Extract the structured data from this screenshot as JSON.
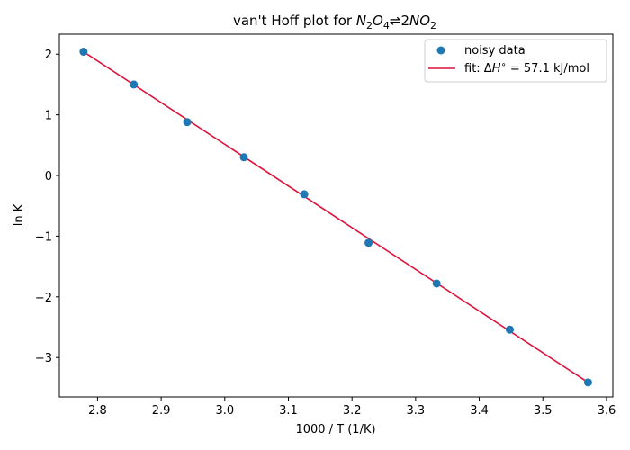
{
  "colors": {
    "scatter": "#1f77b4",
    "fit_line": "#dc143c",
    "axis": "#000000",
    "legend_border": "#cccccc"
  },
  "chart_data": {
    "type": "scatter",
    "title": "van't Hoff plot for N₂O₄ ⇌ 2NO₂",
    "title_parts": {
      "prefix": "van't Hoff plot for ",
      "species1": "N",
      "sub1": "2",
      "mid1": "O",
      "sub2": "4",
      "arrow": "⇌",
      "coef": "2",
      "species2": "NO",
      "sub3": "2"
    },
    "xlabel": "1000 / T (1/K)",
    "ylabel": "ln K",
    "xlim": [
      2.74,
      3.61
    ],
    "ylim": [
      -3.65,
      2.33
    ],
    "xticks": [
      2.8,
      2.9,
      3.0,
      3.1,
      3.2,
      3.3,
      3.4,
      3.5,
      3.6
    ],
    "xtick_labels": [
      "2.8",
      "2.9",
      "3.0",
      "3.1",
      "3.2",
      "3.3",
      "3.4",
      "3.5",
      "3.6"
    ],
    "yticks": [
      2,
      1,
      0,
      -1,
      -2,
      -3
    ],
    "ytick_labels": [
      "2",
      "1",
      "0",
      "−1",
      "−2",
      "−3"
    ],
    "grid": false,
    "legend_position": "top-right",
    "series": [
      {
        "name": "noisy data",
        "kind": "scatter",
        "x": [
          2.778,
          2.857,
          2.941,
          3.03,
          3.125,
          3.226,
          3.333,
          3.448,
          3.571
        ],
        "y": [
          2.04,
          1.5,
          0.88,
          0.3,
          -0.31,
          -1.11,
          -1.78,
          -2.54,
          -3.41
        ]
      },
      {
        "name": "fit",
        "kind": "line",
        "x": [
          2.778,
          3.571
        ],
        "y": [
          2.04,
          -3.41
        ]
      }
    ],
    "legend": {
      "scatter_label": "noisy data",
      "fit_label_prefix": "fit: Δ",
      "fit_label_var": "H",
      "fit_label_sup": "∘",
      "fit_label_suffix": " = 57.1 kJ/mol"
    }
  }
}
